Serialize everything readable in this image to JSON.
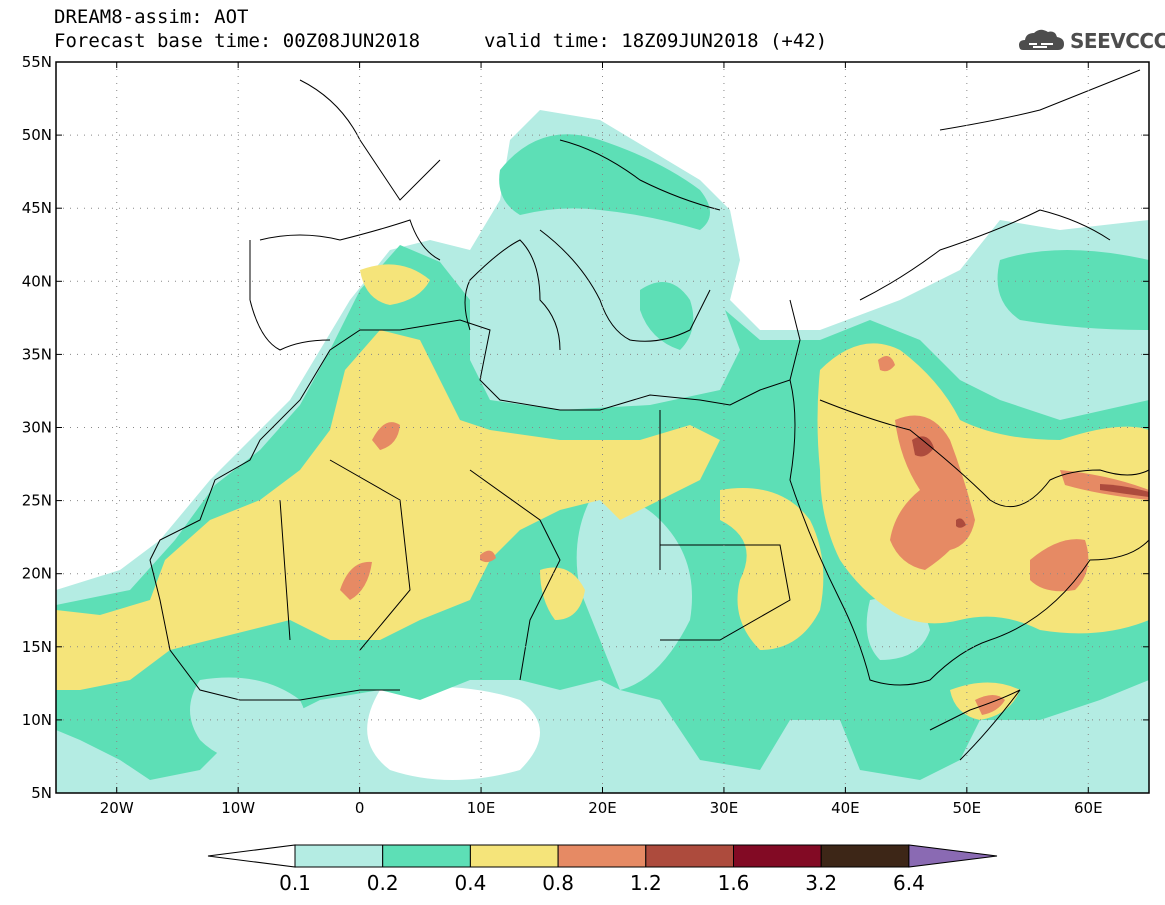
{
  "header": {
    "title": "DREAM8-assim: AOT",
    "base_time": "Forecast base time: 00Z08JUN2018",
    "valid_time": "valid time: 18Z09JUN2018 (+42)"
  },
  "logo": {
    "text": "SEEVCCC",
    "icon": "cloud-icon"
  },
  "map": {
    "projection": "lat-lon",
    "lon_range": [
      -25,
      65
    ],
    "lat_range": [
      5,
      55
    ],
    "lon_ticks": [
      {
        "value": -20,
        "label": "20W"
      },
      {
        "value": -10,
        "label": "10W"
      },
      {
        "value": 0,
        "label": "0"
      },
      {
        "value": 10,
        "label": "10E"
      },
      {
        "value": 20,
        "label": "20E"
      },
      {
        "value": 30,
        "label": "30E"
      },
      {
        "value": 40,
        "label": "40E"
      },
      {
        "value": 50,
        "label": "50E"
      },
      {
        "value": 60,
        "label": "60E"
      }
    ],
    "lat_ticks": [
      {
        "value": 55,
        "label": "55N"
      },
      {
        "value": 50,
        "label": "50N"
      },
      {
        "value": 45,
        "label": "45N"
      },
      {
        "value": 40,
        "label": "40N"
      },
      {
        "value": 35,
        "label": "35N"
      },
      {
        "value": 30,
        "label": "30N"
      },
      {
        "value": 25,
        "label": "25N"
      },
      {
        "value": 20,
        "label": "20N"
      },
      {
        "value": 15,
        "label": "15N"
      },
      {
        "value": 10,
        "label": "10N"
      },
      {
        "value": 5,
        "label": "5N"
      }
    ],
    "grid": "dotted"
  },
  "colorbar": {
    "levels": [
      "0.1",
      "0.2",
      "0.4",
      "0.8",
      "1.2",
      "1.6",
      "3.2",
      "6.4"
    ],
    "colors": [
      "#b4ece3",
      "#5ddfb6",
      "#f5e47a",
      "#e68a64",
      "#ad4b3d",
      "#820a24",
      "#3d2617"
    ],
    "under_color": "#ffffff",
    "over_color": "#8a6ab3"
  }
}
